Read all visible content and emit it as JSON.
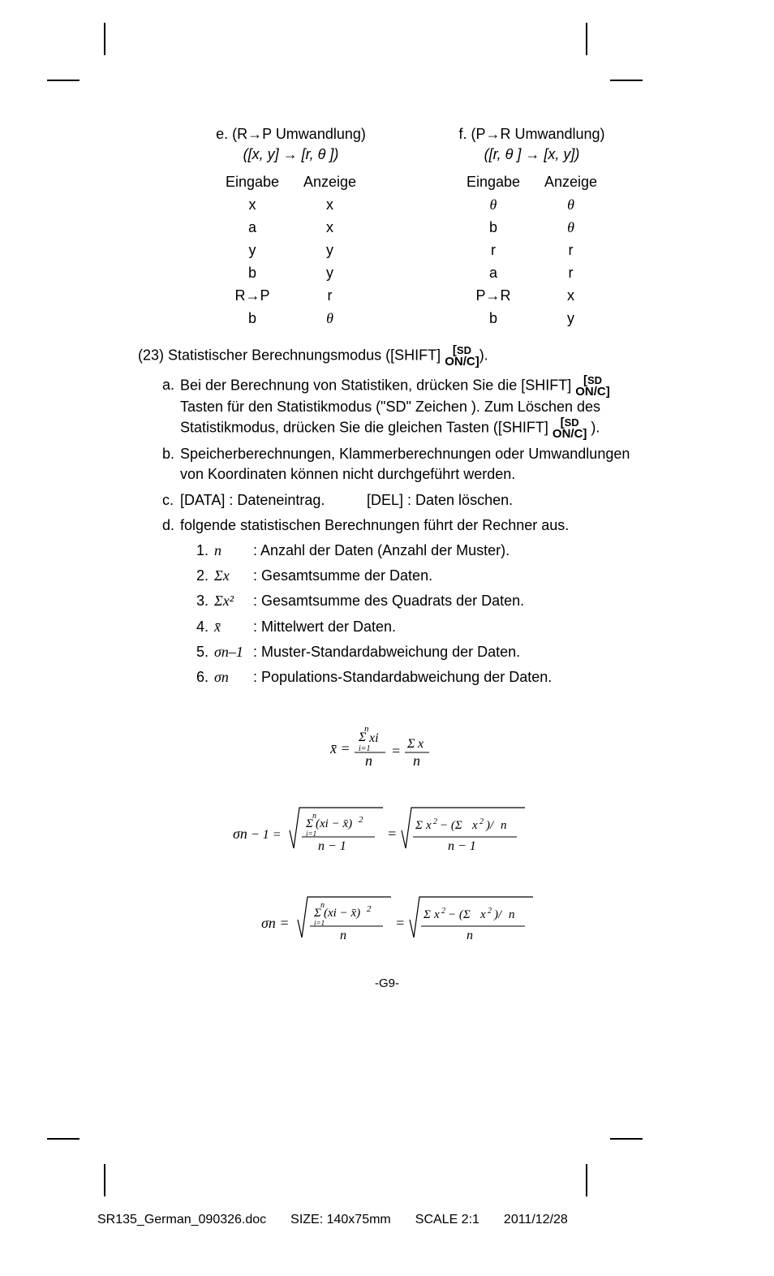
{
  "conv_e": {
    "title": "e. (R→P Umwandlung)",
    "sub": "([x, y] → [r, θ ])",
    "hdr1": "Eingabe",
    "hdr2": "Anzeige",
    "col1": [
      "x",
      "a",
      "y",
      "b",
      "R→P",
      "b"
    ],
    "col2": [
      "x",
      "x",
      "y",
      "y",
      "r",
      "θ"
    ]
  },
  "conv_f": {
    "title": "f. (P→R Umwandlung)",
    "sub": "([r, θ ] → [x, y])",
    "hdr1": "Eingabe",
    "hdr2": "Anzeige",
    "col1": [
      "θ",
      "b",
      "r",
      "a",
      "P→R",
      "b"
    ],
    "col2": [
      "θ",
      "θ",
      "r",
      "r",
      "x",
      "y"
    ]
  },
  "s23": {
    "num": "(23)",
    "text1": "Statistischer Berechnungsmodus ([SHIFT]",
    "key_top": "SD",
    "key_bot": "ON/C",
    "text2": ")."
  },
  "a": {
    "letter": "a.",
    "t1": "Bei der Berechnung von Statistiken, drücken Sie die [SHIFT]",
    "t2": "Tasten für den Statistikmodus (\"SD\" Zeichen ). Zum Löschen des Statistikmodus, drücken Sie die gleichen Tasten ([SHIFT]",
    "t3": ")."
  },
  "b": {
    "letter": "b.",
    "text": "Speicherberechnungen, Klammerberechnungen oder Umwandlungen von Koordinaten können nicht durchgeführt werden."
  },
  "c": {
    "letter": "c.",
    "left": "[DATA] : Dateneintrag.",
    "right": "[DEL] : Daten löschen."
  },
  "d": {
    "letter": "d.",
    "text": "folgende statistischen Berechnungen führt der Rechner aus.",
    "items": [
      {
        "num": "1.",
        "sym": "n",
        "desc": ": Anzahl der Daten (Anzahl der Muster)."
      },
      {
        "num": "2.",
        "sym": "Σx",
        "desc": ": Gesamtsumme der Daten."
      },
      {
        "num": "3.",
        "sym": "Σx²",
        "desc": ": Gesamtsumme des Quadrats der Daten."
      },
      {
        "num": "4.",
        "sym": "x̄",
        "desc": ": Mittelwert der Daten."
      },
      {
        "num": "5.",
        "sym": "σn–1",
        "desc": ": Muster-Standardabweichung der Daten."
      },
      {
        "num": "6.",
        "sym": "σn",
        "desc": ": Populations-Standardabweichung der Daten."
      }
    ]
  },
  "page_num": "-G9-",
  "footer": {
    "file": "SR135_German_090326.doc",
    "size": "SIZE: 140x75mm",
    "scale": "SCALE 2:1",
    "date": "2011/12/28"
  }
}
